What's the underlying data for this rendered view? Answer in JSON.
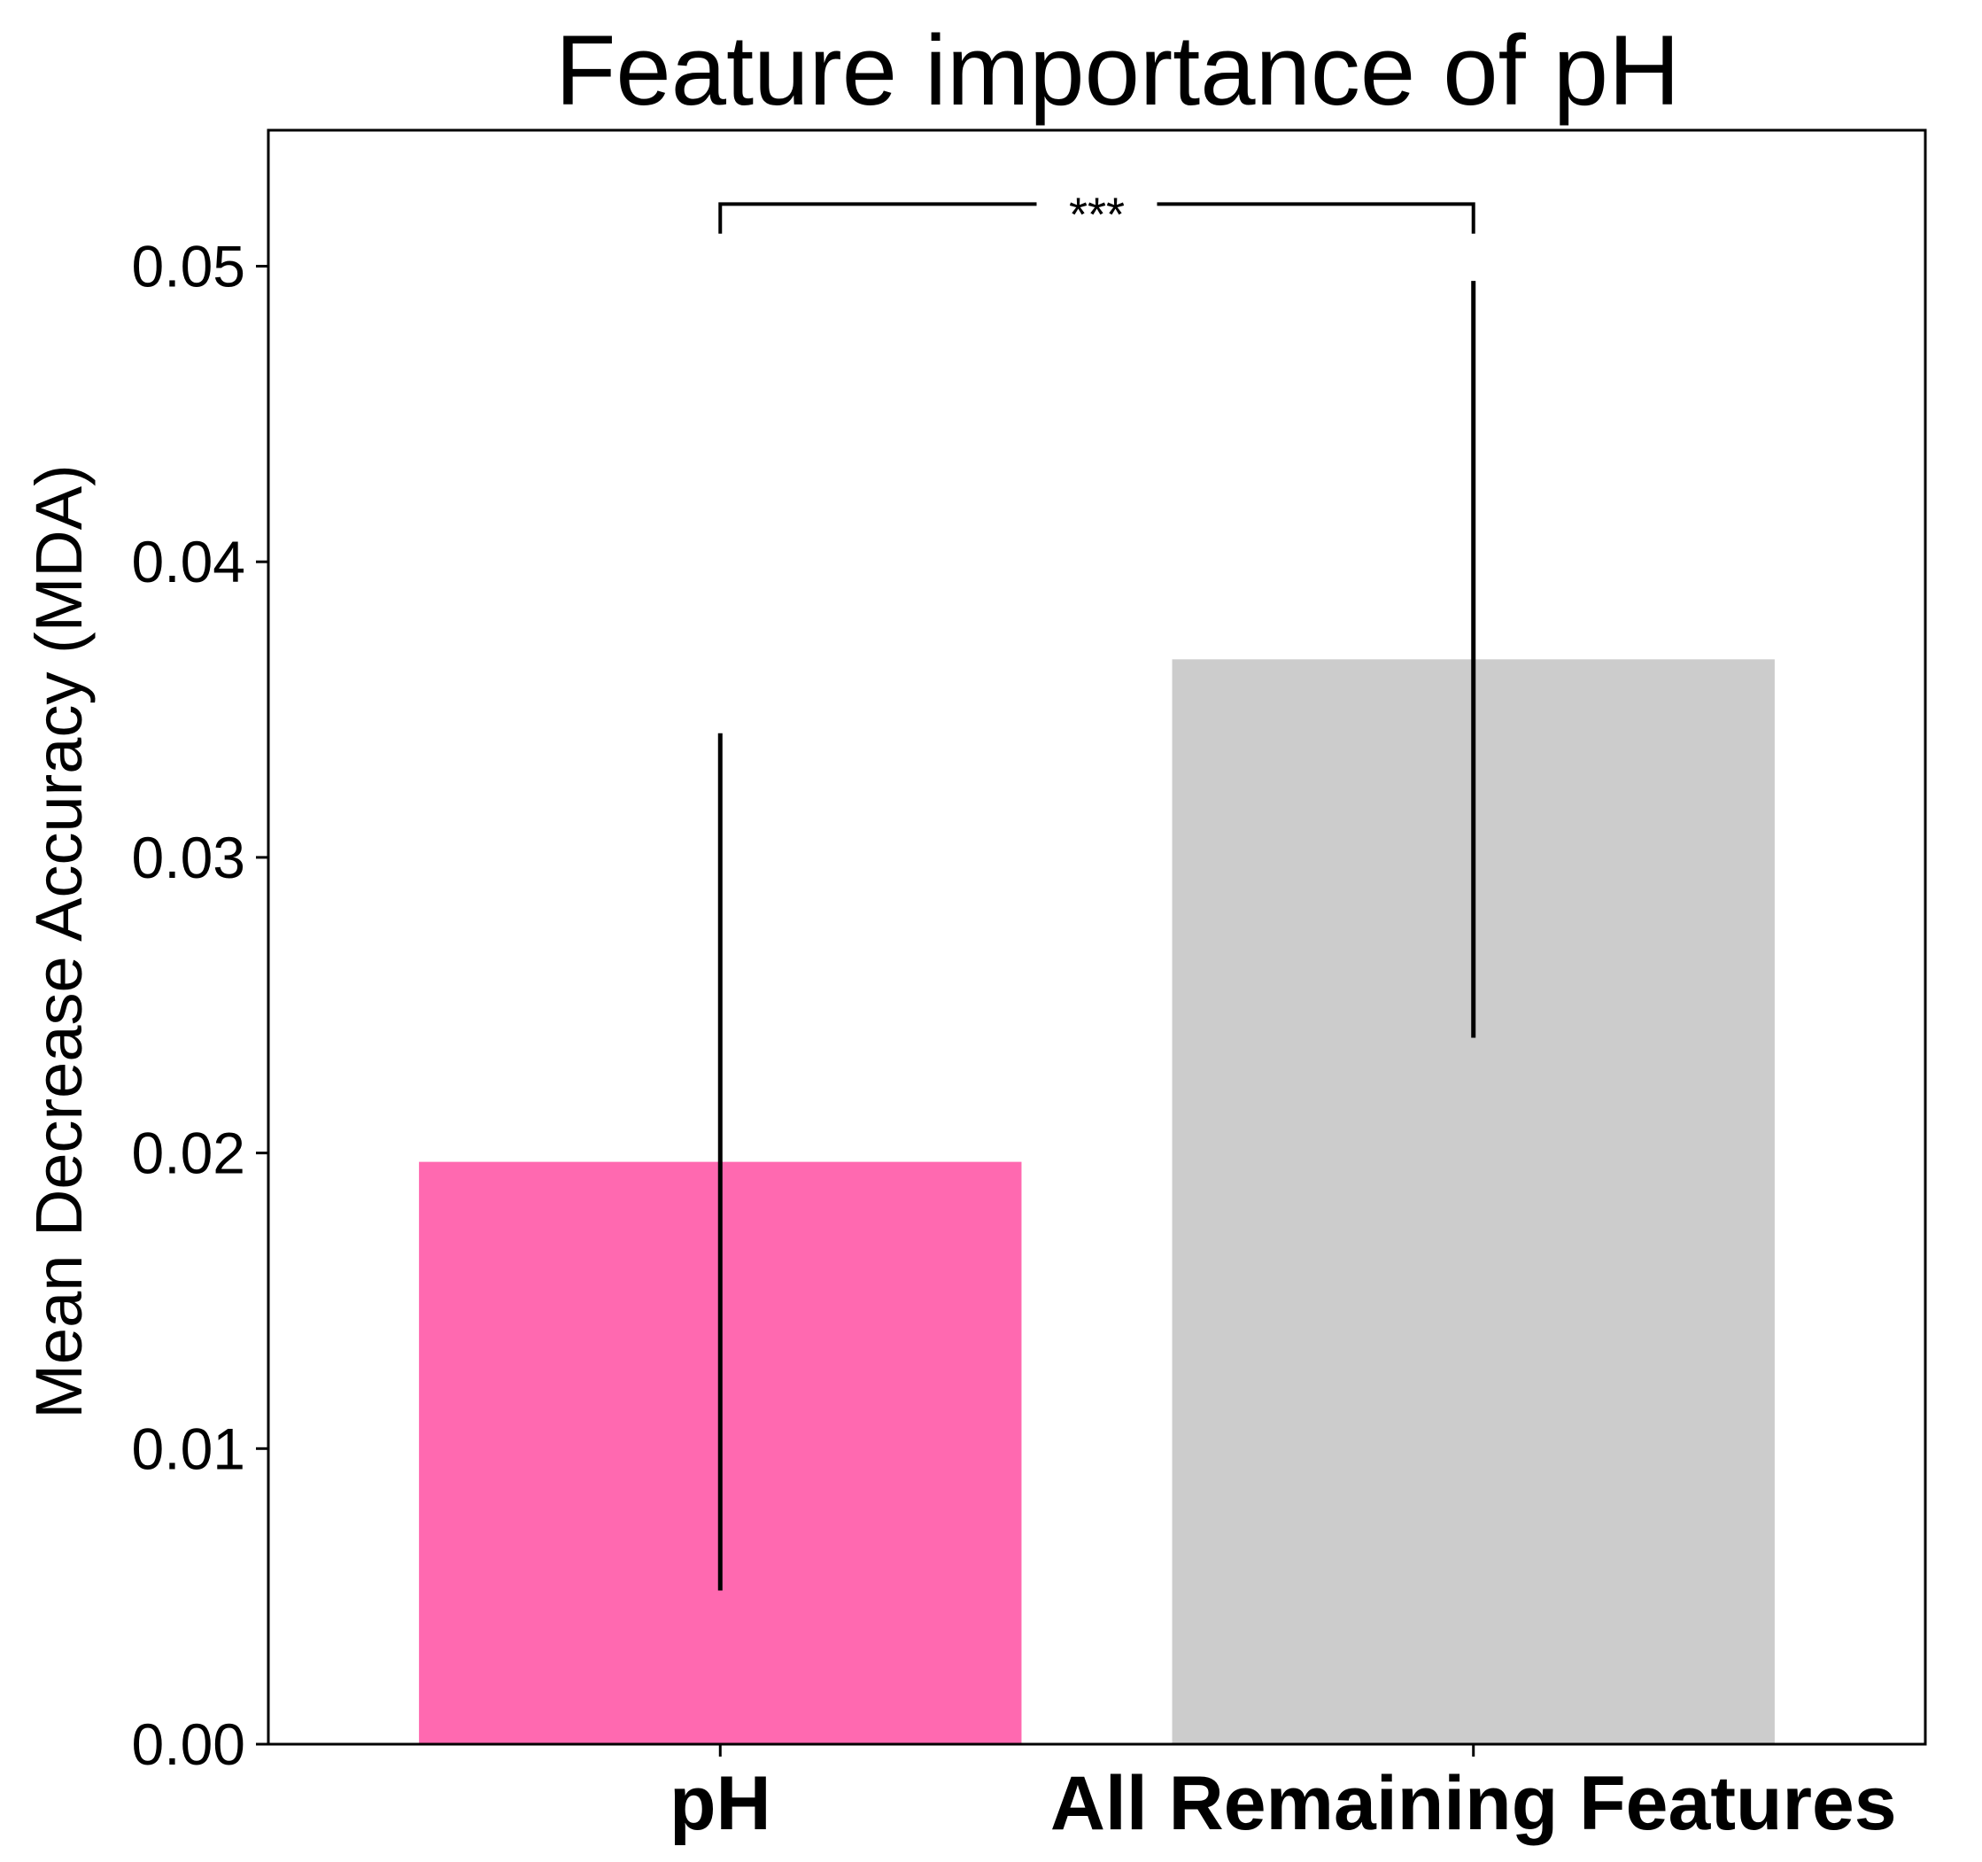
{
  "chart_data": {
    "type": "bar",
    "title": "Feature importance of pH",
    "ylabel": "Mean Decrease Accuracy (MDA)",
    "xlabel": "",
    "categories": [
      "pH",
      "All Remaining Features"
    ],
    "values": [
      0.0197,
      0.0367
    ],
    "error_low": [
      0.0052,
      0.0239
    ],
    "error_high": [
      0.0342,
      0.0495
    ],
    "colors": [
      "#ff69b0",
      "#cccccc"
    ],
    "ylim": [
      0,
      0.0546
    ],
    "yticks": [
      0.0,
      0.01,
      0.02,
      0.03,
      0.04,
      0.05
    ],
    "ytick_labels": [
      "0.00",
      "0.01",
      "0.02",
      "0.03",
      "0.04",
      "0.05"
    ],
    "significance": {
      "label": "***",
      "between": [
        0,
        1
      ],
      "y": 0.0521,
      "drop": 0.001
    },
    "grid": false,
    "legend": "none"
  }
}
